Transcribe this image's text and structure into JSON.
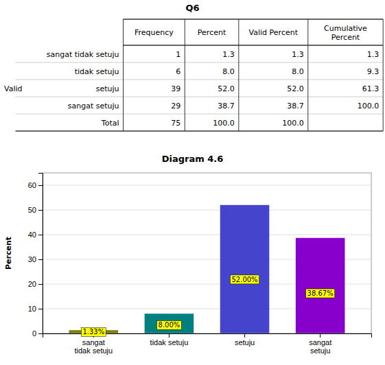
{
  "chart_data": [
    {
      "type": "table",
      "title": "Q6",
      "columns": [
        "Frequency",
        "Percent",
        "Valid Percent",
        "Cumulative\nPercent"
      ],
      "rows": [
        [
          "sangat tidak setuju",
          "1",
          "1.3",
          "1.3",
          "1.3"
        ],
        [
          "tidak setuju",
          "6",
          "8.0",
          "8.0",
          "9.3"
        ],
        [
          "setuju",
          "39",
          "52.0",
          "52.0",
          "61.3"
        ],
        [
          "sangat setuju",
          "29",
          "38.7",
          "38.7",
          "100.0"
        ],
        [
          "Total",
          "75",
          "100.0",
          "100.0"
        ]
      ],
      "group_label": "Valid"
    },
    {
      "type": "bar",
      "title": "Diagram 4.6",
      "categories": [
        "sangat\ntidak setuju",
        "tidak setuju",
        "setuju",
        "sangat\nsetuju"
      ],
      "values": [
        1.33,
        8.0,
        52.0,
        38.67
      ],
      "value_labels": [
        "1.33%",
        "8.00%",
        "52.00%",
        "38.67%"
      ],
      "data_labels": true,
      "colors": [
        "#808000",
        "#008080",
        "#4444cc",
        "#8800cc"
      ],
      "ylabel": "Percent",
      "ylim": [
        0,
        65
      ],
      "yticks": [
        0,
        10,
        20,
        30,
        40,
        50,
        60
      ],
      "grid": true
    }
  ]
}
